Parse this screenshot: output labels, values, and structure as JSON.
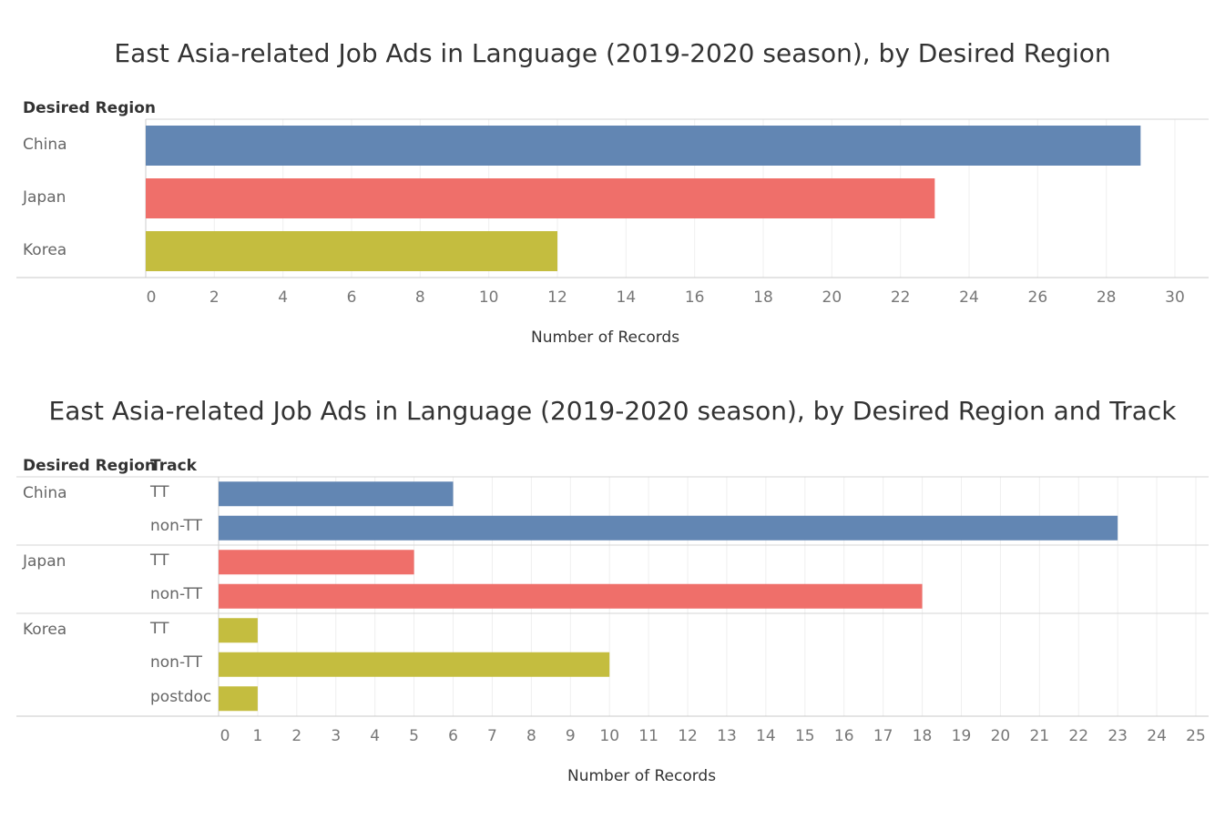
{
  "colors": {
    "China": "#6286b3",
    "Japan": "#ef6f6a",
    "Korea": "#c4bd3f"
  },
  "chart_data": [
    {
      "type": "bar",
      "title": "East Asia-related Job Ads in Language (2019-2020 season), by Desired Region",
      "row_header": "Desired Region",
      "categories": [
        "China",
        "Japan",
        "Korea"
      ],
      "values": [
        29,
        23,
        12
      ],
      "xlabel": "Number of Records",
      "xlim": [
        0,
        30
      ],
      "xticks": [
        0,
        2,
        4,
        6,
        8,
        10,
        12,
        14,
        16,
        18,
        20,
        22,
        24,
        26,
        28,
        30
      ],
      "orientation": "horizontal"
    },
    {
      "type": "bar",
      "title": "East Asia-related Job Ads in Language (2019-2020 season), by Desired Region and Track",
      "row_headers": [
        "Desired Region",
        "Track"
      ],
      "groups": [
        {
          "region": "China",
          "rows": [
            {
              "track": "TT",
              "value": 6
            },
            {
              "track": "non-TT",
              "value": 23
            }
          ]
        },
        {
          "region": "Japan",
          "rows": [
            {
              "track": "TT",
              "value": 5
            },
            {
              "track": "non-TT",
              "value": 18
            }
          ]
        },
        {
          "region": "Korea",
          "rows": [
            {
              "track": "TT",
              "value": 1
            },
            {
              "track": "non-TT",
              "value": 10
            },
            {
              "track": "postdoc",
              "value": 1
            }
          ]
        }
      ],
      "xlabel": "Number of Records",
      "xlim": [
        0,
        25
      ],
      "xticks": [
        0,
        1,
        2,
        3,
        4,
        5,
        6,
        7,
        8,
        9,
        10,
        11,
        12,
        13,
        14,
        15,
        16,
        17,
        18,
        19,
        20,
        21,
        22,
        23,
        24,
        25
      ],
      "orientation": "horizontal"
    }
  ]
}
